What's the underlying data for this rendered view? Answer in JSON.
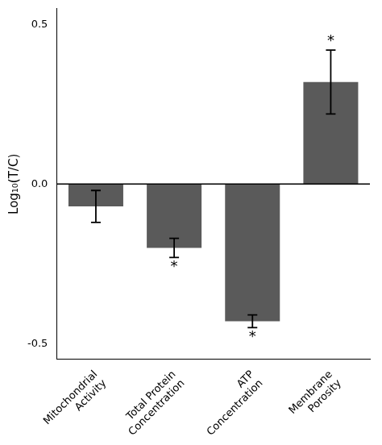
{
  "chart_data": {
    "type": "bar",
    "categories": [
      "Mitochondrial\nActivity",
      "Total Protein\nConcentration",
      "ATP\nConcentration",
      "Membrane\nPorosity"
    ],
    "values": [
      -0.07,
      -0.2,
      -0.43,
      0.32
    ],
    "errors": [
      0.05,
      0.03,
      0.02,
      0.1
    ],
    "color": "#5a5a5a",
    "ylabel": "Log₁₀(T/C)",
    "ylim": [
      -0.55,
      0.55
    ],
    "yticks": [
      -0.5,
      {
        "value": 0,
        "label": "0.0"
      },
      0.5
    ],
    "grid": false,
    "annotations": [
      {
        "category": "Total Protein\nConcentration",
        "text": "*"
      },
      {
        "category": "ATP\nConcentration",
        "text": "*"
      },
      {
        "category": "Membrane\nPorosity",
        "text": "*"
      }
    ]
  }
}
